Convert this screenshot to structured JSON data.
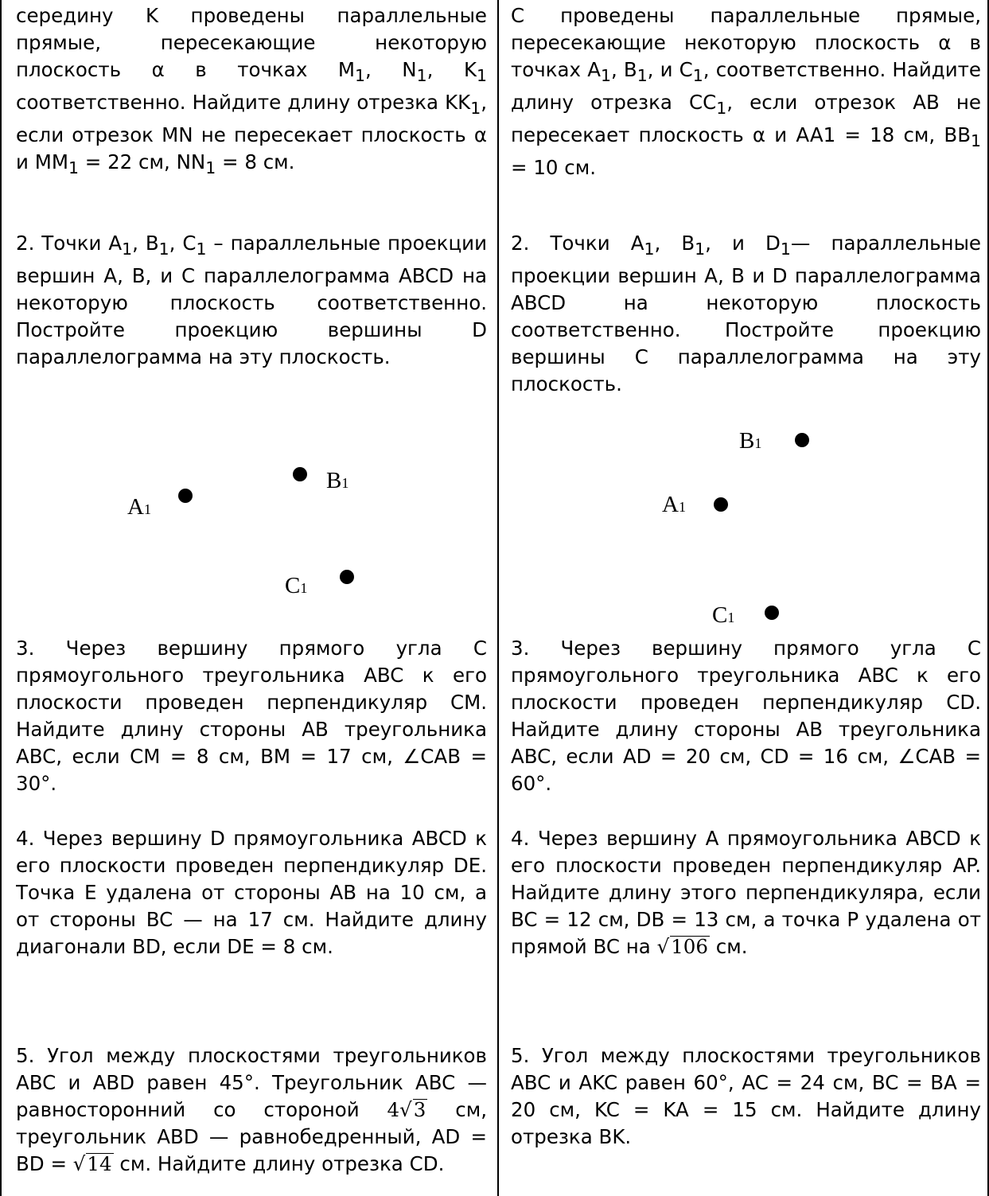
{
  "left": {
    "t1": {
      "a": "середину K проведены параллельные прямые, пересекающие некоторую плоскость α в точках M",
      "b": ", N",
      "c": ", K",
      "d": " соответственно. Найдите длину отрезка KK",
      "e": ", если отрезок MN не пересекает плоскость α и MM",
      "f": " = 22 см, NN",
      "g": " = 8 см."
    },
    "t2": {
      "a": "2. Точки A",
      "b": ", B",
      "c": ", C",
      "d": " – параллельные проекции вершин A, B, и C параллелограмма ABCD на некоторую плоскость соответственно. Постройте проекцию вершины D параллелограмма на эту плоскость."
    },
    "fig": {
      "a_label": "A",
      "b_label": "B",
      "c_label": "C",
      "sub": "1"
    },
    "t3": {
      "text": "3. Через вершину прямого угла C прямоугольного треугольника ABC к его плоскости проведен перпендикуляр CM. Найдите длину стороны AB треугольника ABC, если CM = 8 см, BM = 17 см, ∠CAB = 30°."
    },
    "t4": {
      "text": "4. Через вершину D прямоугольника ABCD к его плоскости проведен перпендикуляр DE. Точка E удалена от стороны AB на 10 см, а от стороны BC — на 17 см. Найдите длину диагонали BD, если DE = 8 см."
    },
    "t5": {
      "a": "5. Угол между плоскостями треугольников ABC и ABD равен 45°. Треугольник ABC — равносторонний со стороной ",
      "coef": "4",
      "rad1": "3",
      "b": " см, треугольник ABD — равнобедренный, AD = BD = ",
      "rad2": "14",
      "c": " см. Найдите длину отрезка CD."
    }
  },
  "right": {
    "t1": {
      "a": "C проведены параллельные прямые, пересекающие некоторую плоскость α в точках A",
      "b": ", B",
      "c": ", и C",
      "d": ", соответственно. Найдите длину отрезка CC",
      "e": ", если отрезок AB не пересекает плоскость α и AA1 = 18 см, BB",
      "f": " = 10 см."
    },
    "t2": {
      "a": "2. Точки A",
      "b": ", B",
      "c": ", и D",
      "d": "— параллельные проекции вершин A, B и D параллелограмма ABCD на некоторую плоскость соответственно. Постройте проекцию вершины C параллелограмма на эту плоскость."
    },
    "fig": {
      "a_label": "A",
      "b_label": "B",
      "c_label": "C",
      "sub": "1"
    },
    "t3": {
      "text": "3. Через вершину прямого угла C прямоугольного треугольника ABC к его плоскости проведен перпендикуляр CD. Найдите длину стороны AB треугольника ABC, если AD = 20 см, CD = 16 см, ∠CAB = 60°."
    },
    "t4": {
      "a": "4. Через вершину A прямоугольника ABCD к его плоскости проведен перпендикуляр AP. Найдите длину этого перпендикуляра, если BC = 12 см, DB = 13 см, а точка P удалена от прямой BC на ",
      "rad": "106",
      "b": " см."
    },
    "t5": {
      "text": "5. Угол между плоскостями треугольников ABC и AKC равен 60°, AC = 24 см, BC = BA = 20 см, KC = KA = 15 см. Найдите длину отрезка BK."
    }
  }
}
